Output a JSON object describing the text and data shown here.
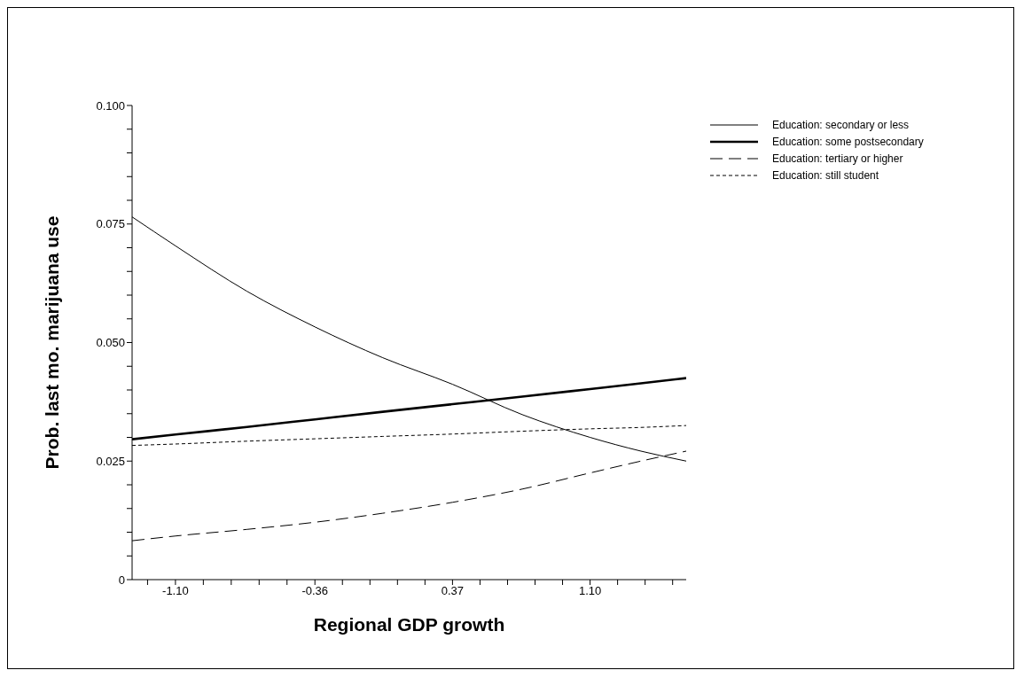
{
  "chart_data": {
    "type": "line",
    "xlabel": "Regional GDP growth",
    "ylabel": "Prob. last mo. marijuana use",
    "x": [
      -1.33,
      -1.1,
      -0.72,
      -0.36,
      0.0,
      0.37,
      0.74,
      1.1,
      1.37,
      1.61
    ],
    "series": [
      {
        "name": "Education: secondary or less",
        "color": "#000000",
        "line_style": "solid",
        "values": [
          0.0765,
          0.0704,
          0.0608,
          0.0533,
          0.0468,
          0.0412,
          0.0348,
          0.03,
          0.0271,
          0.025
        ]
      },
      {
        "name": "Education: some postsecondary",
        "color": "#000000",
        "line_style": "solid",
        "values": [
          0.0296,
          0.0306,
          0.0322,
          0.0338,
          0.0354,
          0.037,
          0.0386,
          0.0402,
          0.0414,
          0.0425
        ]
      },
      {
        "name": "Education: tertiary or higher",
        "color": "#000000",
        "line_style": "dashed",
        "values": [
          0.0082,
          0.0092,
          0.0106,
          0.0121,
          0.014,
          0.0163,
          0.0191,
          0.0225,
          0.025,
          0.0271
        ]
      },
      {
        "name": "Education: still student",
        "color": "#000000",
        "line_style": "dotted",
        "values": [
          0.0283,
          0.0286,
          0.0292,
          0.0297,
          0.0302,
          0.0307,
          0.0313,
          0.0318,
          0.0321,
          0.0325
        ]
      }
    ],
    "xlim": [
      -1.33,
      1.61
    ],
    "xticks": [
      {
        "value": -1.248,
        "label": null
      },
      {
        "value": -1.1,
        "label": "-1.10"
      },
      {
        "value": -0.952,
        "label": null
      },
      {
        "value": -0.804,
        "label": null
      },
      {
        "value": -0.656,
        "label": null
      },
      {
        "value": -0.508,
        "label": null
      },
      {
        "value": -0.36,
        "label": "-0.36"
      },
      {
        "value": -0.214,
        "label": null
      },
      {
        "value": -0.068,
        "label": null
      },
      {
        "value": 0.078,
        "label": null
      },
      {
        "value": 0.224,
        "label": null
      },
      {
        "value": 0.37,
        "label": "0.37"
      },
      {
        "value": 0.516,
        "label": null
      },
      {
        "value": 0.662,
        "label": null
      },
      {
        "value": 0.808,
        "label": null
      },
      {
        "value": 0.954,
        "label": null
      },
      {
        "value": 1.1,
        "label": "1.10"
      },
      {
        "value": 1.246,
        "label": null
      },
      {
        "value": 1.392,
        "label": null
      },
      {
        "value": 1.538,
        "label": null
      }
    ],
    "ylim": [
      0,
      0.1
    ],
    "yticks": [
      0,
      {
        "value": 0.005,
        "label": null
      },
      {
        "value": 0.01,
        "label": null
      },
      {
        "value": 0.015,
        "label": null
      },
      {
        "value": 0.02,
        "label": null
      },
      {
        "value": 0.025,
        "label": "0.025"
      },
      {
        "value": 0.03,
        "label": null
      },
      {
        "value": 0.035,
        "label": null
      },
      {
        "value": 0.04,
        "label": null
      },
      {
        "value": 0.045,
        "label": null
      },
      {
        "value": 0.05,
        "label": "0.050"
      },
      {
        "value": 0.055,
        "label": null
      },
      {
        "value": 0.06,
        "label": null
      },
      {
        "value": 0.065,
        "label": null
      },
      {
        "value": 0.07,
        "label": null
      },
      {
        "value": 0.075,
        "label": "0.075"
      },
      {
        "value": 0.08,
        "label": null
      },
      {
        "value": 0.085,
        "label": null
      },
      {
        "value": 0.09,
        "label": null
      },
      {
        "value": 0.095,
        "label": null
      },
      {
        "value": 0.1,
        "label": "0.100"
      }
    ],
    "grid": false,
    "legend": "top right"
  }
}
